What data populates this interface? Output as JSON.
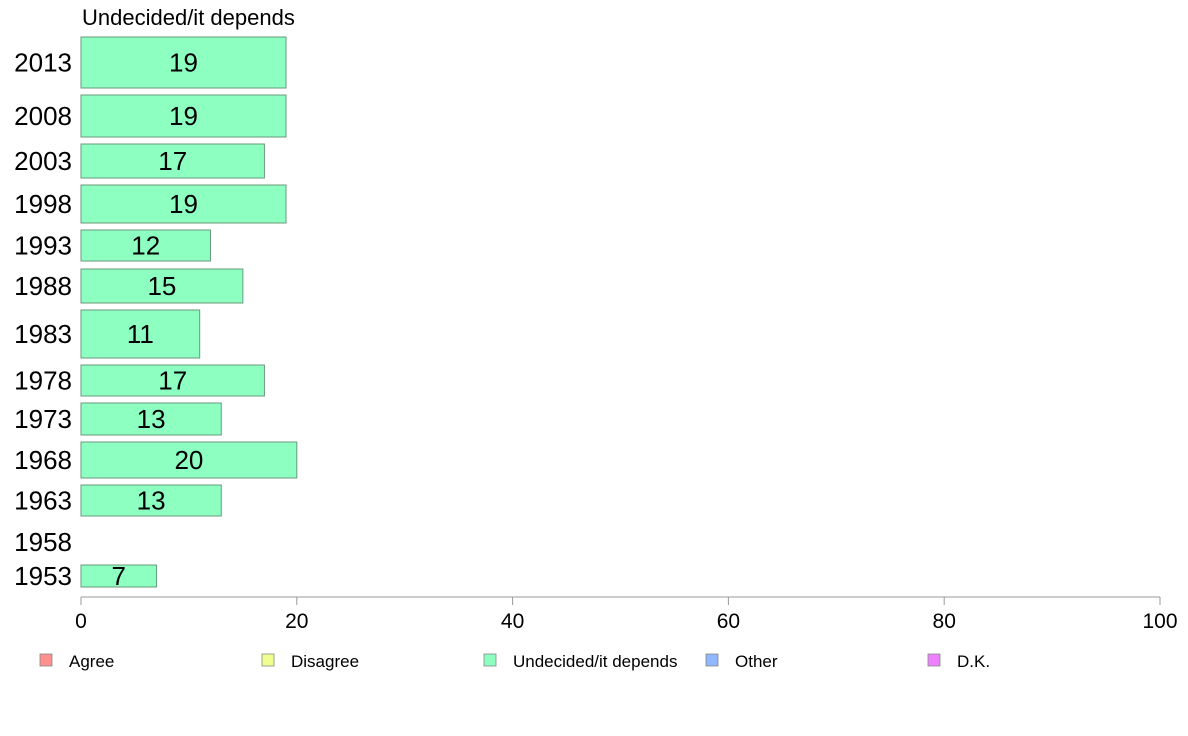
{
  "chart_data": {
    "type": "bar",
    "orientation": "horizontal",
    "title": "Undecided/it depends",
    "categories": [
      "2013",
      "2008",
      "2003",
      "1998",
      "1993",
      "1988",
      "1983",
      "1978",
      "1973",
      "1968",
      "1963",
      "1958",
      "1953"
    ],
    "series": [
      {
        "name": "Undecided/it depends",
        "values": [
          19,
          19,
          17,
          19,
          12,
          15,
          11,
          17,
          13,
          20,
          13,
          null,
          7
        ]
      }
    ],
    "value_labels": [
      "19",
      "19",
      "17",
      "19",
      "12",
      "15",
      "11",
      "17",
      "13",
      "20",
      "13",
      "",
      "7"
    ],
    "xlim": [
      0,
      100
    ],
    "xticks": [
      0,
      20,
      40,
      60,
      80,
      100
    ],
    "xtick_labels": [
      "0",
      "20",
      "40",
      "60",
      "80",
      "100"
    ],
    "grid": false,
    "bar_color": "#8dffc1",
    "bar_stroke": "#6a9a7e",
    "axis_color": "#999999",
    "legend": {
      "position": "bottom",
      "items": [
        {
          "label": "Agree",
          "color": "#ff8f8f"
        },
        {
          "label": "Disagree",
          "color": "#eeff8f"
        },
        {
          "label": "Undecided/it depends",
          "color": "#8dffc1"
        },
        {
          "label": "Other",
          "color": "#8fb8ff"
        },
        {
          "label": "D.K.",
          "color": "#ee80ff"
        }
      ]
    }
  }
}
